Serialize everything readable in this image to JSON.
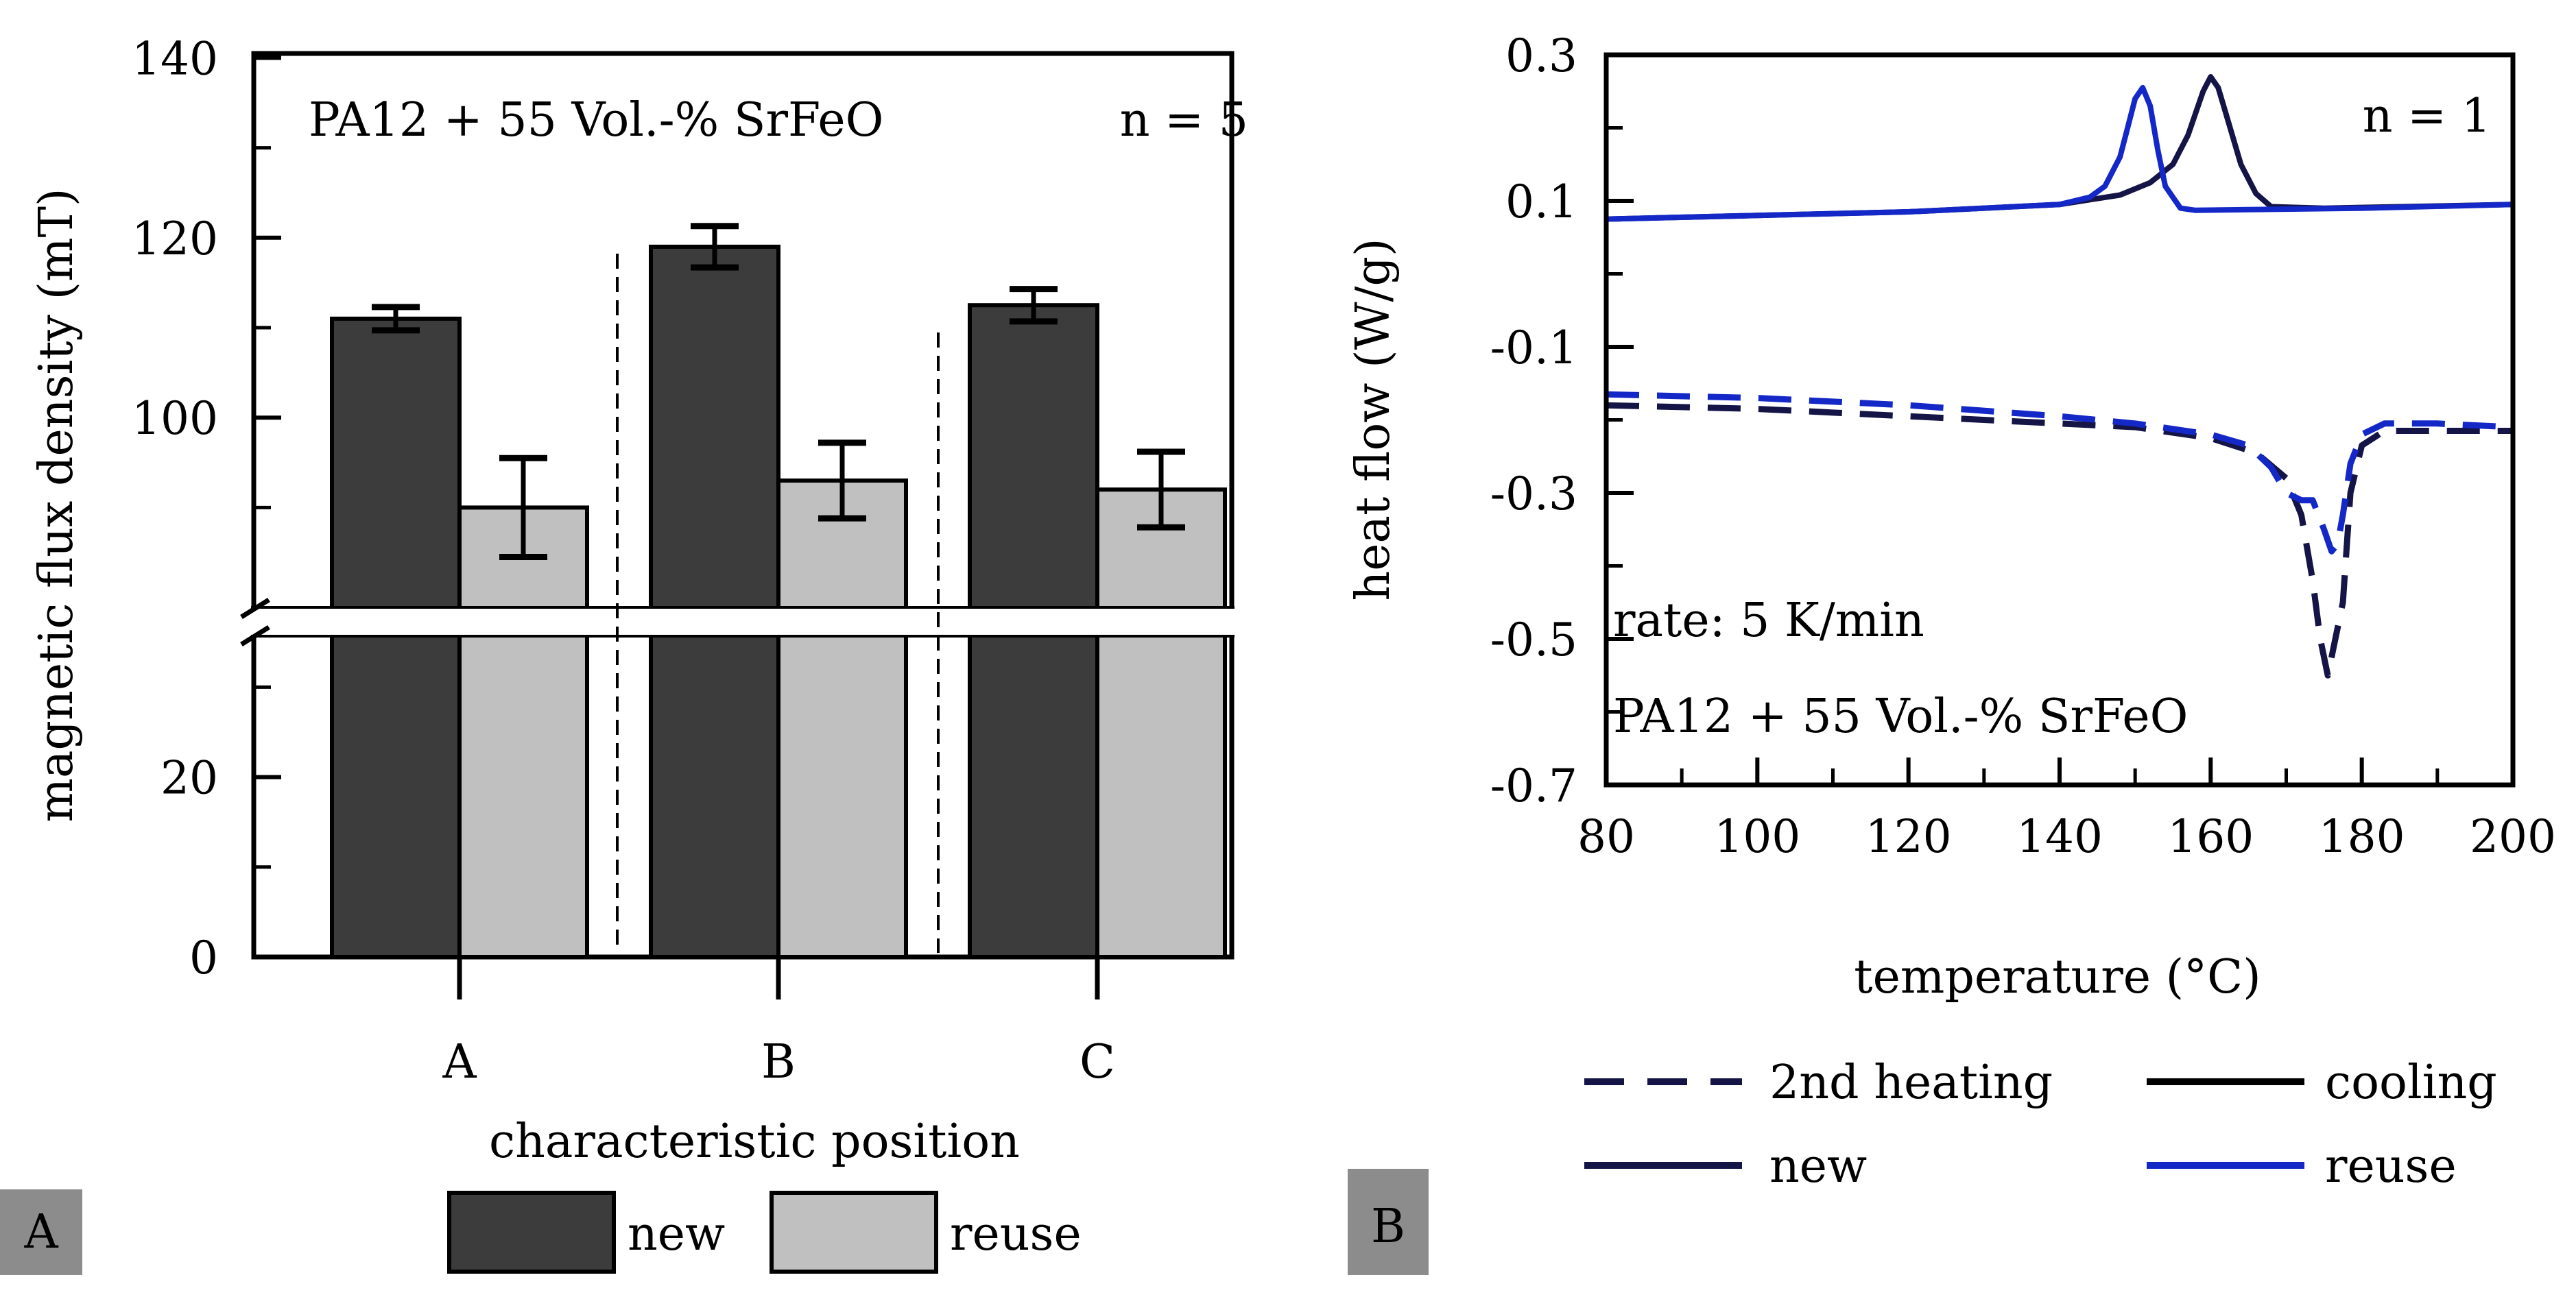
{
  "chart_data": [
    {
      "panel_label": "A",
      "type": "bar",
      "title": "",
      "annotation_left": "PA12 + 55 Vol.-% SrFeO",
      "annotation_right": "n = 5",
      "xlabel": "characteristic position",
      "ylabel": "magnetic flux density (mT)",
      "categories": [
        "A",
        "B",
        "C"
      ],
      "yticks": [
        "0",
        "20",
        "100",
        "120",
        "140"
      ],
      "y_axis_break": [
        35,
        80
      ],
      "series": [
        {
          "name": "new",
          "color": "#3c3c3c",
          "values": [
            111,
            119,
            112.5
          ],
          "errors": [
            1.3,
            2.3,
            1.8
          ]
        },
        {
          "name": "reuse",
          "color": "#c0c0c0",
          "values": [
            90,
            93,
            92
          ],
          "errors": [
            5.5,
            4.2,
            4.2
          ]
        }
      ],
      "legend": [
        "new",
        "reuse"
      ]
    },
    {
      "panel_label": "B",
      "type": "line",
      "title": "",
      "annotation_top_right": "n = 1",
      "annotation_rate": "rate: 5 K/min",
      "annotation_material": "PA12 + 55 Vol.-% SrFeO",
      "xlabel": "temperature (°C)",
      "ylabel": "heat flow (W/g)",
      "xlim": [
        80,
        200
      ],
      "ylim": [
        -0.7,
        0.3
      ],
      "xticks": [
        "80",
        "100",
        "120",
        "140",
        "160",
        "180",
        "200"
      ],
      "yticks": [
        "0.3",
        "0.1",
        "-0.1",
        "-0.3",
        "-0.5",
        "-0.7"
      ],
      "colors": {
        "new": "#141446",
        "reuse": "#1428c8"
      },
      "series": [
        {
          "name": "cooling new",
          "style": "solid",
          "color": "#141446",
          "x": [
            80,
            100,
            120,
            140,
            148,
            152,
            155,
            157,
            158,
            159,
            160,
            161,
            162,
            164,
            166,
            168,
            175,
            190,
            200
          ],
          "y": [
            0.075,
            0.08,
            0.085,
            0.095,
            0.108,
            0.125,
            0.15,
            0.19,
            0.22,
            0.25,
            0.27,
            0.255,
            0.22,
            0.15,
            0.11,
            0.092,
            0.09,
            0.093,
            0.095
          ]
        },
        {
          "name": "cooling reuse",
          "style": "solid",
          "color": "#1428c8",
          "x": [
            80,
            100,
            120,
            140,
            144,
            146,
            148,
            149,
            150,
            151,
            152,
            153,
            154,
            156,
            158,
            165,
            180,
            200
          ],
          "y": [
            0.075,
            0.08,
            0.085,
            0.095,
            0.105,
            0.12,
            0.16,
            0.2,
            0.24,
            0.255,
            0.23,
            0.17,
            0.12,
            0.09,
            0.087,
            0.088,
            0.09,
            0.095
          ]
        },
        {
          "name": "2nd heating new",
          "style": "dashed",
          "color": "#141446",
          "x": [
            80,
            100,
            120,
            140,
            150,
            160,
            166,
            170,
            172,
            173.5,
            174.5,
            175.5,
            176.5,
            177.5,
            178.5,
            180,
            183,
            190,
            200
          ],
          "y": [
            -0.18,
            -0.185,
            -0.195,
            -0.205,
            -0.21,
            -0.225,
            -0.245,
            -0.28,
            -0.33,
            -0.42,
            -0.5,
            -0.55,
            -0.5,
            -0.45,
            -0.3,
            -0.235,
            -0.215,
            -0.215,
            -0.215
          ]
        },
        {
          "name": "2nd heating reuse",
          "style": "dashed",
          "color": "#1428c8",
          "x": [
            80,
            100,
            120,
            140,
            150,
            160,
            165,
            168,
            170,
            172,
            173.5,
            175,
            176,
            176.8,
            177.5,
            178.5,
            180,
            183,
            190,
            200
          ],
          "y": [
            -0.165,
            -0.17,
            -0.18,
            -0.195,
            -0.205,
            -0.22,
            -0.235,
            -0.265,
            -0.3,
            -0.31,
            -0.31,
            -0.35,
            -0.38,
            -0.37,
            -0.33,
            -0.26,
            -0.22,
            -0.205,
            -0.205,
            -0.21
          ]
        }
      ],
      "legend": [
        "2nd heating",
        "cooling",
        "new",
        "reuse"
      ]
    }
  ]
}
